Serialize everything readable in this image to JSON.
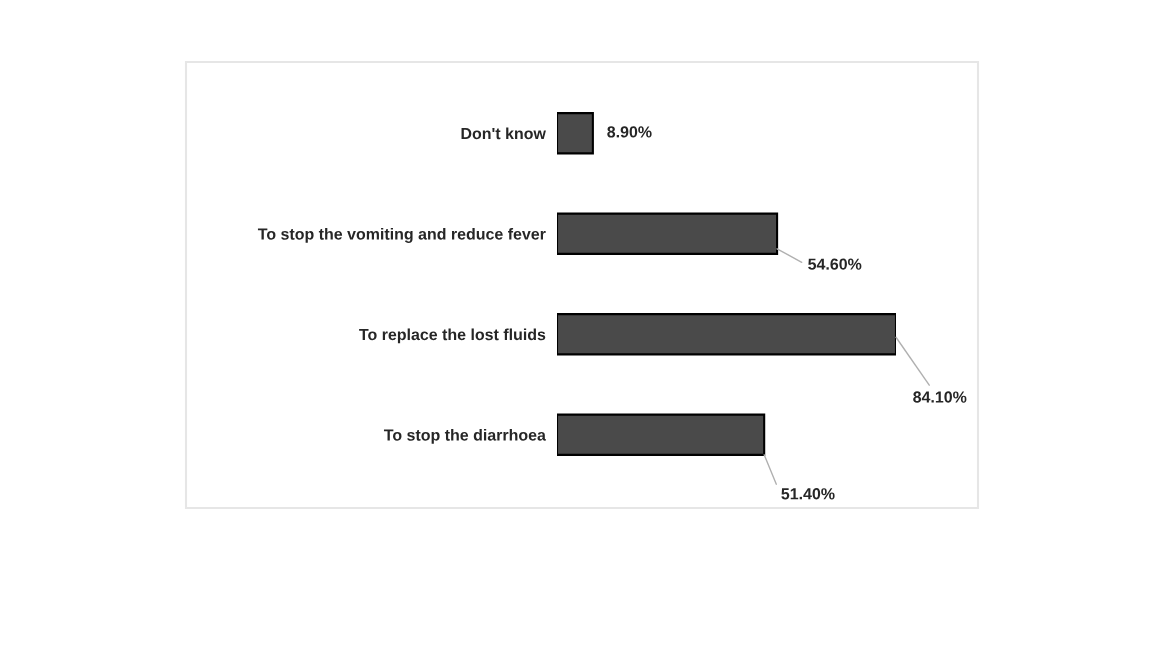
{
  "chart_data": {
    "type": "bar",
    "orientation": "horizontal",
    "categories": [
      "Don't know",
      "To stop the vomiting and reduce fever",
      "To replace the lost fluids",
      "To stop the diarrhoea"
    ],
    "values": [
      8.9,
      54.6,
      84.1,
      51.4
    ],
    "value_labels": [
      "8.90%",
      "54.60%",
      "84.10%",
      "51.40%"
    ],
    "color": "#4a4a4a",
    "tick_labels": "y",
    "grid": false,
    "legend": false
  }
}
